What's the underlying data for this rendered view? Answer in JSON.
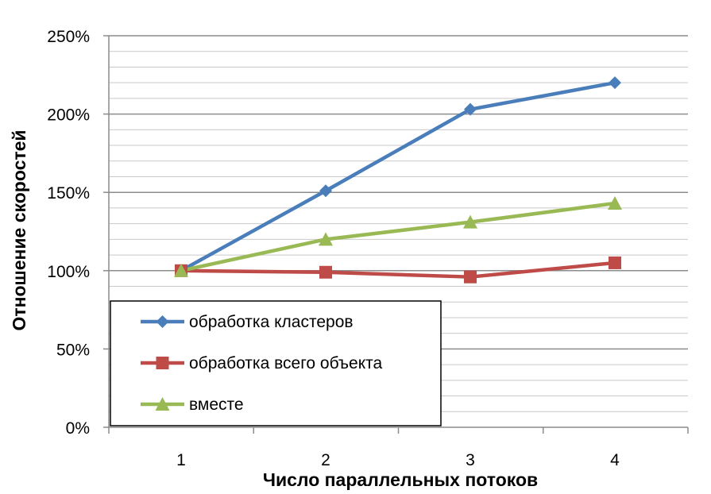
{
  "chart_data": {
    "type": "line",
    "x": [
      1,
      2,
      3,
      4
    ],
    "categories": [
      "1",
      "2",
      "3",
      "4"
    ],
    "series": [
      {
        "name": "обработка кластеров",
        "values": [
          100,
          151,
          203,
          220
        ],
        "color": "#4a7ebb",
        "marker": "diamond"
      },
      {
        "name": "обработка всего объекта",
        "values": [
          100,
          99,
          96,
          105
        ],
        "color": "#be4b48",
        "marker": "square"
      },
      {
        "name": "вместе",
        "values": [
          100,
          120,
          131,
          143
        ],
        "color": "#98b954",
        "marker": "triangle"
      }
    ],
    "xlabel": "Число  параллельных  потоков",
    "ylabel": "Отношение скоростей",
    "ylim": [
      0,
      250
    ],
    "y_ticks": [
      0,
      50,
      100,
      150,
      200,
      250
    ],
    "y_tick_labels": [
      "0%",
      "50%",
      "100%",
      "150%",
      "200%",
      "250%"
    ],
    "y_unit": "%",
    "grid": {
      "major_step": 50,
      "minor_step": 10
    },
    "legend_position": "bottom-left inside plot"
  }
}
